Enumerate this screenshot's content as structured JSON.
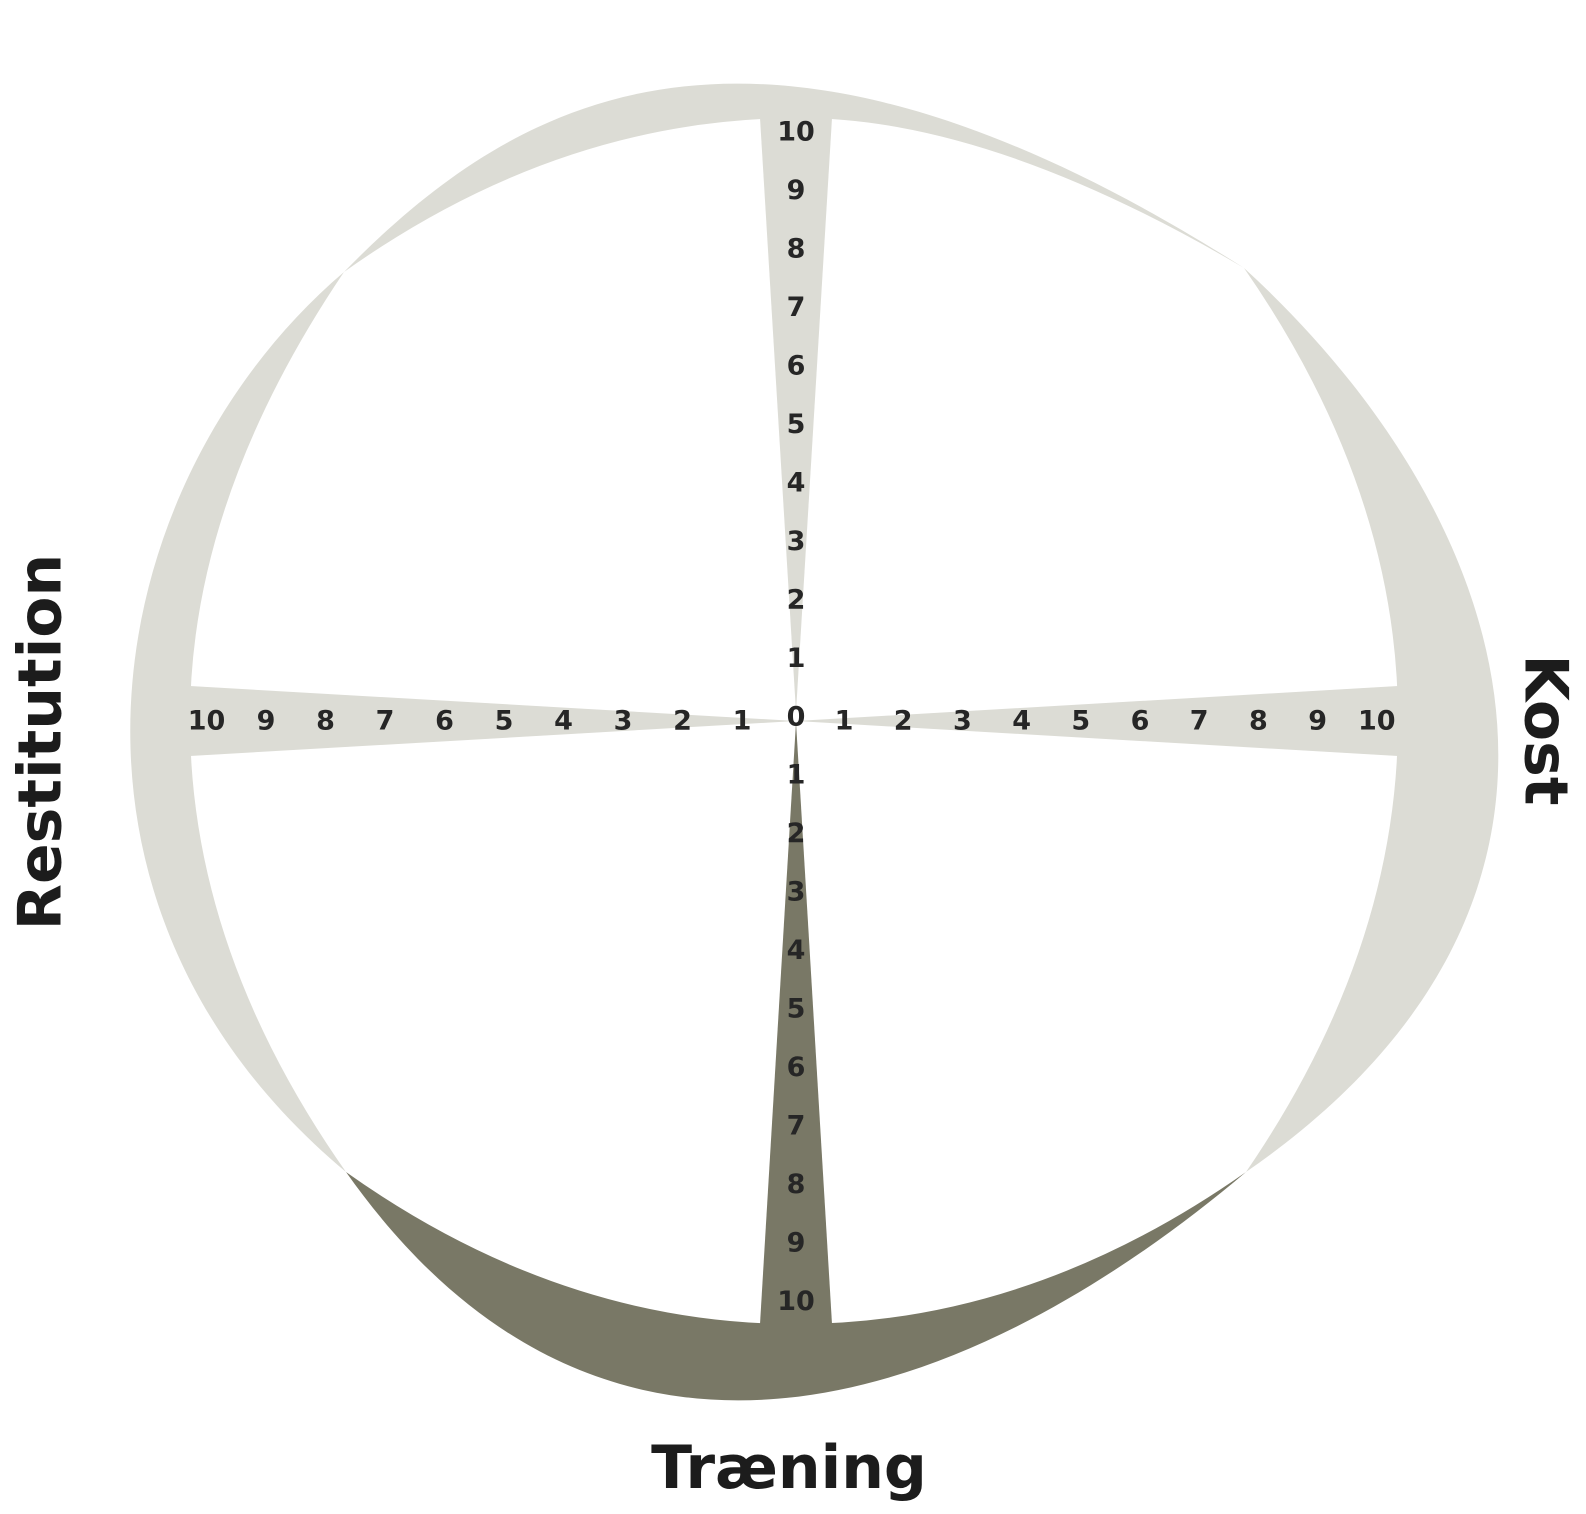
{
  "colors": {
    "neutral": "#dcdcd5",
    "highlight": "#797866",
    "text": "#262626"
  },
  "axes": {
    "top": {
      "label": "",
      "ticks": [
        "0",
        "1",
        "2",
        "3",
        "4",
        "5",
        "6",
        "7",
        "8",
        "9",
        "10"
      ]
    },
    "right": {
      "label": "Kost",
      "ticks": [
        "1",
        "2",
        "3",
        "4",
        "5",
        "6",
        "7",
        "8",
        "9",
        "10"
      ]
    },
    "bottom": {
      "label": "Træning",
      "ticks": [
        "1",
        "2",
        "3",
        "4",
        "5",
        "6",
        "7",
        "8",
        "9",
        "10"
      ]
    },
    "left": {
      "label": "Restitution",
      "ticks": [
        "1",
        "2",
        "3",
        "4",
        "5",
        "6",
        "7",
        "8",
        "9",
        "10"
      ]
    }
  },
  "highlighted_axis": "bottom"
}
